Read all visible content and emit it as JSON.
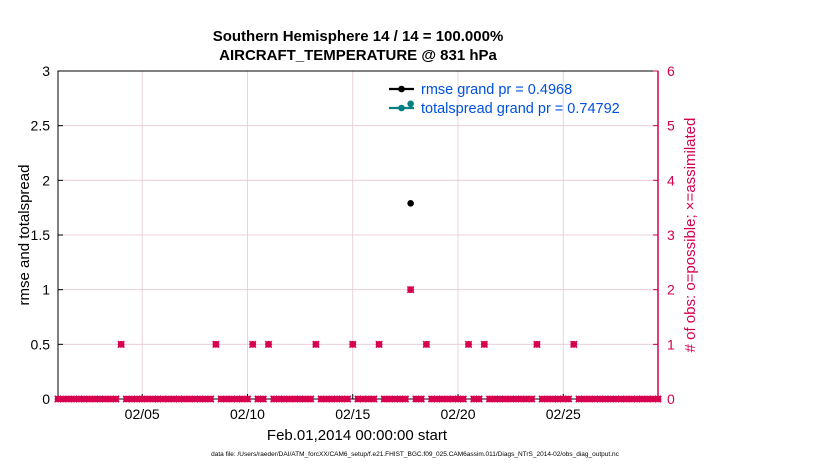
{
  "chart_data": {
    "type": "scatter",
    "title_line1": "Southern Hemisphere 14 / 14 = 100.000%",
    "title_line2": "AIRCRAFT_TEMPERATURE @ 831 hPa",
    "ylabel": "rmse and totalspread",
    "ylabel_right": "# of obs: o=possible; ×=assimilated",
    "xlabel": "Feb.01,2014 00:00:00 start",
    "xlim": [
      1,
      29.5
    ],
    "ylim": [
      0,
      3
    ],
    "ylim_right": [
      0,
      6
    ],
    "x_ticks": [
      {
        "value": 5,
        "label": "02/05"
      },
      {
        "value": 10,
        "label": "02/10"
      },
      {
        "value": 15,
        "label": "02/15"
      },
      {
        "value": 20,
        "label": "02/20"
      },
      {
        "value": 25,
        "label": "02/25"
      }
    ],
    "y_ticks": [
      {
        "value": 0,
        "label": "0"
      },
      {
        "value": 0.5,
        "label": "0.5"
      },
      {
        "value": 1,
        "label": "1"
      },
      {
        "value": 1.5,
        "label": "1.5"
      },
      {
        "value": 2,
        "label": "2"
      },
      {
        "value": 2.5,
        "label": "2.5"
      },
      {
        "value": 3,
        "label": "3"
      }
    ],
    "y_ticks_right": [
      {
        "value": 0,
        "label": "0"
      },
      {
        "value": 1,
        "label": "1"
      },
      {
        "value": 2,
        "label": "2"
      },
      {
        "value": 3,
        "label": "3"
      },
      {
        "value": 4,
        "label": "4"
      },
      {
        "value": 5,
        "label": "5"
      },
      {
        "value": 6,
        "label": "6"
      }
    ],
    "grid": true,
    "legend_position": "top-right",
    "series": [
      {
        "name": "rmse grand pr = 0.4968",
        "color": "#000000",
        "axis": "left",
        "marker": "circle",
        "points": [
          {
            "x": 17.75,
            "y": 1.79
          }
        ]
      },
      {
        "name": "totalspread grand pr = 0.74792",
        "color": "#008080",
        "axis": "left",
        "marker": "circle",
        "points": [
          {
            "x": 17.75,
            "y": 2.7
          }
        ]
      }
    ],
    "obs_count_series": {
      "color": "#d6004f",
      "axis": "right",
      "x_start": 1.0,
      "x_step": 0.25,
      "count": 115,
      "nonzero": [
        {
          "x": 4.0,
          "y": 1
        },
        {
          "x": 8.5,
          "y": 1
        },
        {
          "x": 10.25,
          "y": 1
        },
        {
          "x": 11.0,
          "y": 1
        },
        {
          "x": 13.25,
          "y": 1
        },
        {
          "x": 15.0,
          "y": 1
        },
        {
          "x": 16.25,
          "y": 1
        },
        {
          "x": 17.75,
          "y": 2
        },
        {
          "x": 18.5,
          "y": 1
        },
        {
          "x": 20.5,
          "y": 1
        },
        {
          "x": 21.25,
          "y": 1
        },
        {
          "x": 23.75,
          "y": 1
        },
        {
          "x": 25.5,
          "y": 1
        }
      ]
    }
  },
  "footer_text": "data file: /Users/raeder/DAI/ATM_forcXX/CAM6_setup/f.e21.FHIST_BGC.f09_025.CAM6assim.011/Diags_NTrS_2014-02/obs_diag_output.nc",
  "colors": {
    "left_axis": "#000000",
    "right_axis": "#d6004f",
    "legend_text": "#0050e0",
    "grid": "#e6c8d2"
  }
}
